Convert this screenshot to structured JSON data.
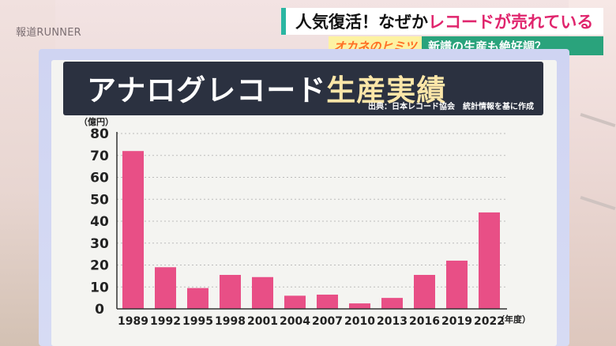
{
  "logo": "報道RUNNER",
  "banner": {
    "headline_black": "人気復活！なぜか",
    "headline_pink": "レコードが売れている",
    "tag": "オカネのヒミツ",
    "subline": "新譜の生産も絶好調？"
  },
  "board": {
    "title_main": "アナログレコード",
    "title_accent": "生産実績",
    "source": "出典：日本レコード協会　統計情報を基に作成"
  },
  "colors": {
    "bar": "#e84f86",
    "title_bg": "#2b3140",
    "accent_text": "#fbe6a8"
  },
  "chart_data": {
    "type": "bar",
    "title": "アナログレコード生産実績",
    "ylabel": "（億円）",
    "xlabel": "（年度）",
    "categories": [
      "1989",
      "1992",
      "1995",
      "1998",
      "2001",
      "2004",
      "2007",
      "2010",
      "2013",
      "2016",
      "2019",
      "2022"
    ],
    "values": [
      72,
      19,
      9.5,
      15.5,
      14.5,
      6,
      6.5,
      2.5,
      5,
      15.5,
      22,
      44
    ],
    "ylim": [
      0,
      80
    ],
    "yticks": [
      "0",
      "10",
      "20",
      "30",
      "40",
      "50",
      "60",
      "70",
      "80"
    ],
    "grid": true
  }
}
